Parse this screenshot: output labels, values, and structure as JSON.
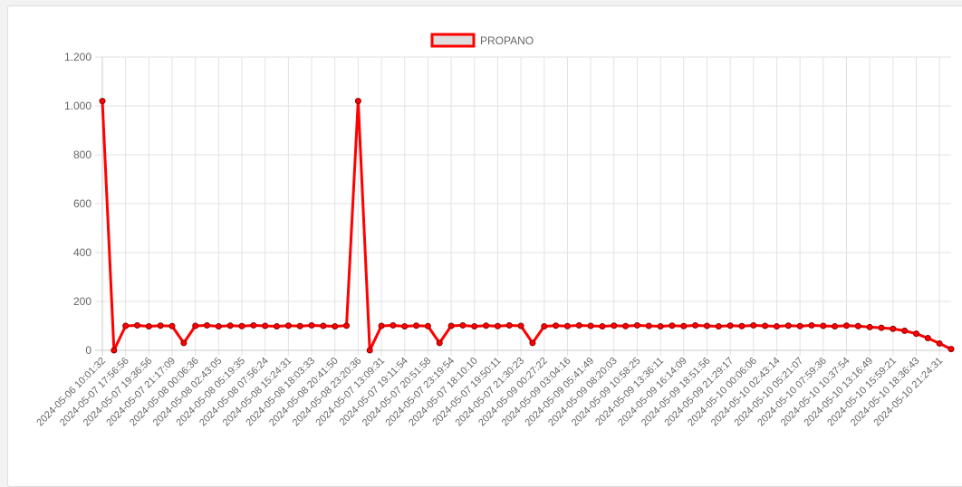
{
  "chart_data": {
    "type": "line",
    "categories": [
      "2024-05-06 10:01:32",
      null,
      "2024-05-07 17:56:56",
      null,
      "2024-05-07 19:36:56",
      null,
      "2024-05-07 21:17:09",
      null,
      "2024-05-08 00:06:36",
      null,
      "2024-05-08 02:43:05",
      null,
      "2024-05-08 05:19:35",
      null,
      "2024-05-08 07:56:24",
      null,
      "2024-05-08 15:24:31",
      null,
      "2024-05-08 18:03:33",
      null,
      "2024-05-08 20:41:50",
      null,
      "2024-05-08 23:20:36",
      null,
      "2024-05-07 13:09:31",
      null,
      "2024-05-07 19:11:54",
      null,
      "2024-05-07 20:51:58",
      null,
      "2024-05-07 23:19:54",
      null,
      "2024-05-07 18:10:10",
      null,
      "2024-05-07 19:50:11",
      null,
      "2024-05-07 21:30:23",
      null,
      "2024-05-09 00:27:22",
      null,
      "2024-05-09 03:04:16",
      null,
      "2024-05-09 05:41:49",
      null,
      "2024-05-09 08:20:03",
      null,
      "2024-05-09 10:58:25",
      null,
      "2024-05-09 13:36:11",
      null,
      "2024-05-09 16:14:09",
      null,
      "2024-05-09 18:51:56",
      null,
      "2024-05-09 21:29:17",
      null,
      "2024-05-10 00:06:06",
      null,
      "2024-05-10 02:43:14",
      null,
      "2024-05-10 05:21:07",
      null,
      "2024-05-10 07:59:36",
      null,
      "2024-05-10 10:37:54",
      null,
      "2024-05-10 13:16:49",
      null,
      "2024-05-10 15:59:21",
      null,
      "2024-05-10 18:36:43",
      null,
      "2024-05-10 21:24:31",
      null
    ],
    "series": [
      {
        "name": "PROPANO",
        "color": "#ff0000",
        "values": [
          1020,
          0,
          100,
          102,
          98,
          101,
          99,
          30,
          100,
          102,
          98,
          101,
          99,
          102,
          100,
          98,
          101,
          99,
          102,
          100,
          98,
          101,
          1020,
          0,
          100,
          102,
          98,
          101,
          99,
          30,
          100,
          102,
          98,
          101,
          99,
          102,
          100,
          30,
          98,
          101,
          99,
          102,
          100,
          98,
          101,
          99,
          102,
          100,
          98,
          101,
          99,
          102,
          100,
          98,
          101,
          99,
          102,
          100,
          98,
          101,
          99,
          102,
          100,
          98,
          101,
          99,
          95,
          92,
          88,
          80,
          68,
          50,
          28,
          5
        ]
      }
    ],
    "ylim": [
      0,
      1200
    ],
    "yticks": [
      0,
      200,
      400,
      600,
      800,
      {
        "value": 1000,
        "label": "1.000"
      },
      {
        "value": 1200,
        "label": "1.200"
      }
    ],
    "grid": true,
    "legend": "top"
  }
}
